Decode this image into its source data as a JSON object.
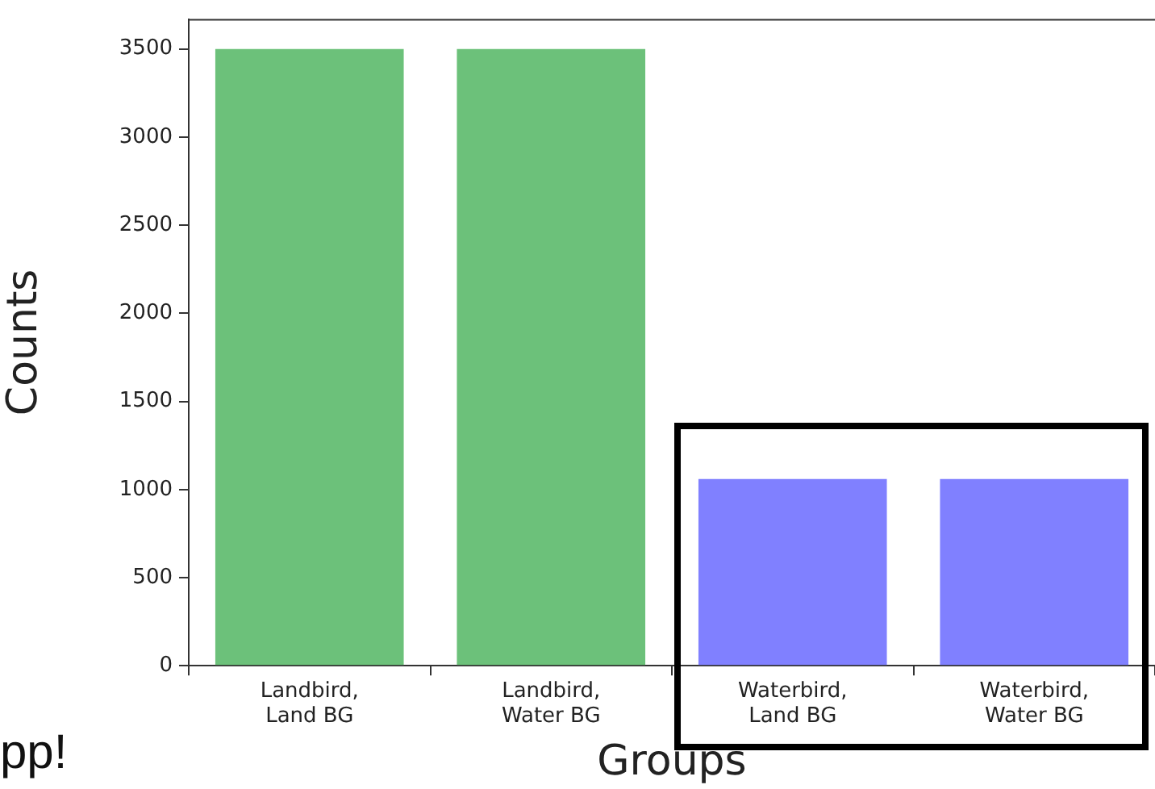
{
  "chart_data": {
    "type": "bar",
    "xlabel": "Groups",
    "ylabel": "Counts",
    "categories": [
      "Landbird,\nLand BG",
      "Landbird,\nWater BG",
      "Waterbird,\nLand BG",
      "Waterbird,\nWater BG"
    ],
    "values": [
      3500,
      3500,
      1060,
      1060
    ],
    "colors": [
      "#6cc17a",
      "#6cc17a",
      "#8080ff",
      "#8080ff"
    ],
    "ylim": [
      0,
      3670
    ],
    "yticks": [
      0,
      500,
      1000,
      1500,
      2000,
      2500,
      3000,
      3500
    ],
    "grid": false,
    "legend": false,
    "annotations": [
      "pp!"
    ]
  }
}
